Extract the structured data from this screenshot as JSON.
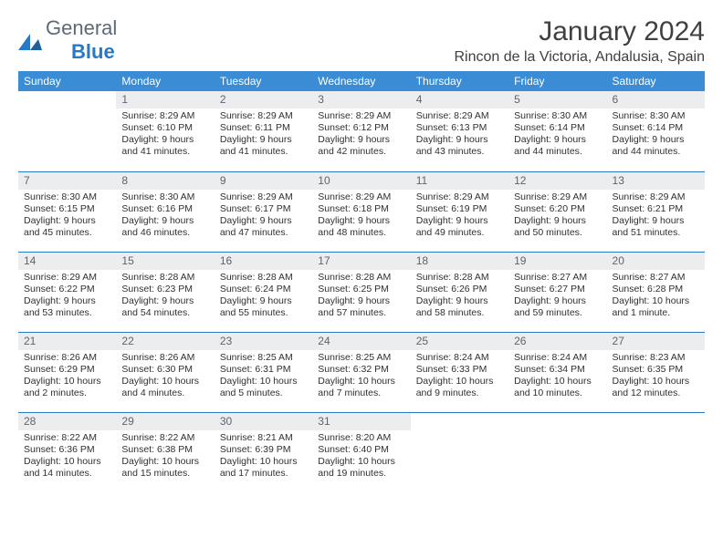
{
  "logo": {
    "word1": "General",
    "word2": "Blue"
  },
  "title": "January 2024",
  "location": "Rincon de la Victoria, Andalusia, Spain",
  "colors": {
    "header_bg": "#3a8cd4",
    "row_border": "#2878c8",
    "daynum_bg": "#ecedee",
    "text": "#303030"
  },
  "daysOfWeek": [
    "Sunday",
    "Monday",
    "Tuesday",
    "Wednesday",
    "Thursday",
    "Friday",
    "Saturday"
  ],
  "weeks": [
    [
      {
        "n": "",
        "sunrise": "",
        "sunset": "",
        "daylight": ""
      },
      {
        "n": "1",
        "sunrise": "Sunrise: 8:29 AM",
        "sunset": "Sunset: 6:10 PM",
        "daylight": "Daylight: 9 hours and 41 minutes."
      },
      {
        "n": "2",
        "sunrise": "Sunrise: 8:29 AM",
        "sunset": "Sunset: 6:11 PM",
        "daylight": "Daylight: 9 hours and 41 minutes."
      },
      {
        "n": "3",
        "sunrise": "Sunrise: 8:29 AM",
        "sunset": "Sunset: 6:12 PM",
        "daylight": "Daylight: 9 hours and 42 minutes."
      },
      {
        "n": "4",
        "sunrise": "Sunrise: 8:29 AM",
        "sunset": "Sunset: 6:13 PM",
        "daylight": "Daylight: 9 hours and 43 minutes."
      },
      {
        "n": "5",
        "sunrise": "Sunrise: 8:30 AM",
        "sunset": "Sunset: 6:14 PM",
        "daylight": "Daylight: 9 hours and 44 minutes."
      },
      {
        "n": "6",
        "sunrise": "Sunrise: 8:30 AM",
        "sunset": "Sunset: 6:14 PM",
        "daylight": "Daylight: 9 hours and 44 minutes."
      }
    ],
    [
      {
        "n": "7",
        "sunrise": "Sunrise: 8:30 AM",
        "sunset": "Sunset: 6:15 PM",
        "daylight": "Daylight: 9 hours and 45 minutes."
      },
      {
        "n": "8",
        "sunrise": "Sunrise: 8:30 AM",
        "sunset": "Sunset: 6:16 PM",
        "daylight": "Daylight: 9 hours and 46 minutes."
      },
      {
        "n": "9",
        "sunrise": "Sunrise: 8:29 AM",
        "sunset": "Sunset: 6:17 PM",
        "daylight": "Daylight: 9 hours and 47 minutes."
      },
      {
        "n": "10",
        "sunrise": "Sunrise: 8:29 AM",
        "sunset": "Sunset: 6:18 PM",
        "daylight": "Daylight: 9 hours and 48 minutes."
      },
      {
        "n": "11",
        "sunrise": "Sunrise: 8:29 AM",
        "sunset": "Sunset: 6:19 PM",
        "daylight": "Daylight: 9 hours and 49 minutes."
      },
      {
        "n": "12",
        "sunrise": "Sunrise: 8:29 AM",
        "sunset": "Sunset: 6:20 PM",
        "daylight": "Daylight: 9 hours and 50 minutes."
      },
      {
        "n": "13",
        "sunrise": "Sunrise: 8:29 AM",
        "sunset": "Sunset: 6:21 PM",
        "daylight": "Daylight: 9 hours and 51 minutes."
      }
    ],
    [
      {
        "n": "14",
        "sunrise": "Sunrise: 8:29 AM",
        "sunset": "Sunset: 6:22 PM",
        "daylight": "Daylight: 9 hours and 53 minutes."
      },
      {
        "n": "15",
        "sunrise": "Sunrise: 8:28 AM",
        "sunset": "Sunset: 6:23 PM",
        "daylight": "Daylight: 9 hours and 54 minutes."
      },
      {
        "n": "16",
        "sunrise": "Sunrise: 8:28 AM",
        "sunset": "Sunset: 6:24 PM",
        "daylight": "Daylight: 9 hours and 55 minutes."
      },
      {
        "n": "17",
        "sunrise": "Sunrise: 8:28 AM",
        "sunset": "Sunset: 6:25 PM",
        "daylight": "Daylight: 9 hours and 57 minutes."
      },
      {
        "n": "18",
        "sunrise": "Sunrise: 8:28 AM",
        "sunset": "Sunset: 6:26 PM",
        "daylight": "Daylight: 9 hours and 58 minutes."
      },
      {
        "n": "19",
        "sunrise": "Sunrise: 8:27 AM",
        "sunset": "Sunset: 6:27 PM",
        "daylight": "Daylight: 9 hours and 59 minutes."
      },
      {
        "n": "20",
        "sunrise": "Sunrise: 8:27 AM",
        "sunset": "Sunset: 6:28 PM",
        "daylight": "Daylight: 10 hours and 1 minute."
      }
    ],
    [
      {
        "n": "21",
        "sunrise": "Sunrise: 8:26 AM",
        "sunset": "Sunset: 6:29 PM",
        "daylight": "Daylight: 10 hours and 2 minutes."
      },
      {
        "n": "22",
        "sunrise": "Sunrise: 8:26 AM",
        "sunset": "Sunset: 6:30 PM",
        "daylight": "Daylight: 10 hours and 4 minutes."
      },
      {
        "n": "23",
        "sunrise": "Sunrise: 8:25 AM",
        "sunset": "Sunset: 6:31 PM",
        "daylight": "Daylight: 10 hours and 5 minutes."
      },
      {
        "n": "24",
        "sunrise": "Sunrise: 8:25 AM",
        "sunset": "Sunset: 6:32 PM",
        "daylight": "Daylight: 10 hours and 7 minutes."
      },
      {
        "n": "25",
        "sunrise": "Sunrise: 8:24 AM",
        "sunset": "Sunset: 6:33 PM",
        "daylight": "Daylight: 10 hours and 9 minutes."
      },
      {
        "n": "26",
        "sunrise": "Sunrise: 8:24 AM",
        "sunset": "Sunset: 6:34 PM",
        "daylight": "Daylight: 10 hours and 10 minutes."
      },
      {
        "n": "27",
        "sunrise": "Sunrise: 8:23 AM",
        "sunset": "Sunset: 6:35 PM",
        "daylight": "Daylight: 10 hours and 12 minutes."
      }
    ],
    [
      {
        "n": "28",
        "sunrise": "Sunrise: 8:22 AM",
        "sunset": "Sunset: 6:36 PM",
        "daylight": "Daylight: 10 hours and 14 minutes."
      },
      {
        "n": "29",
        "sunrise": "Sunrise: 8:22 AM",
        "sunset": "Sunset: 6:38 PM",
        "daylight": "Daylight: 10 hours and 15 minutes."
      },
      {
        "n": "30",
        "sunrise": "Sunrise: 8:21 AM",
        "sunset": "Sunset: 6:39 PM",
        "daylight": "Daylight: 10 hours and 17 minutes."
      },
      {
        "n": "31",
        "sunrise": "Sunrise: 8:20 AM",
        "sunset": "Sunset: 6:40 PM",
        "daylight": "Daylight: 10 hours and 19 minutes."
      },
      {
        "n": "",
        "sunrise": "",
        "sunset": "",
        "daylight": ""
      },
      {
        "n": "",
        "sunrise": "",
        "sunset": "",
        "daylight": ""
      },
      {
        "n": "",
        "sunrise": "",
        "sunset": "",
        "daylight": ""
      }
    ]
  ]
}
